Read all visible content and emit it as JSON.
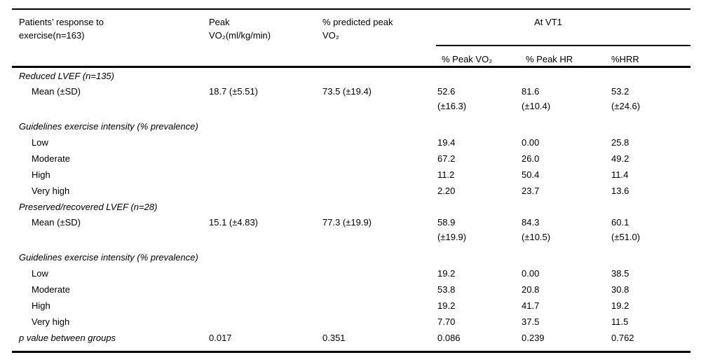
{
  "table": {
    "header": {
      "col1": "Patients’ response to\nexercise(n=163)",
      "col2": "Peak\nVO₂(ml/kg/min)",
      "col3": "% predicted peak\nVO₂",
      "at_vt1": "At VT1",
      "sub_peak_vo2": "% Peak VO₂",
      "sub_peak_hr": "% Peak HR",
      "sub_hrr": "%HRR"
    },
    "rows": [
      {
        "label": "Reduced LVEF (n=135)",
        "style": "section",
        "cells": [
          "",
          "",
          "",
          "",
          ""
        ]
      },
      {
        "label": "Mean (±SD)",
        "style": "item",
        "tall": true,
        "cells": [
          "18.7 (±5.51)",
          "73.5 (±19.4)",
          "52.6\n(±16.3)",
          "81.6\n(±10.4)",
          "53.2\n(±24.6)"
        ]
      },
      {
        "label": "Guidelines exercise intensity (% prevalence)",
        "style": "section",
        "gap": true,
        "cells": [
          "",
          "",
          "",
          "",
          ""
        ]
      },
      {
        "label": "Low",
        "style": "item",
        "cells": [
          "",
          "",
          "19.4",
          "0.00",
          "25.8"
        ]
      },
      {
        "label": "Moderate",
        "style": "item",
        "cells": [
          "",
          "",
          "67.2",
          "26.0",
          "49.2"
        ]
      },
      {
        "label": "High",
        "style": "item",
        "cells": [
          "",
          "",
          "11.2",
          "50.4",
          "11.4"
        ]
      },
      {
        "label": "Very high",
        "style": "item",
        "cells": [
          "",
          "",
          "2.20",
          "23.7",
          "13.6"
        ]
      },
      {
        "label": "Preserved/recovered LVEF (n=28)",
        "style": "section",
        "cells": [
          "",
          "",
          "",
          "",
          ""
        ]
      },
      {
        "label": "Mean (±SD)",
        "style": "item",
        "tall": true,
        "cells": [
          "15.1 (±4.83)",
          "77.3 (±19.9)",
          "58.9\n(±19.9)",
          "84.3\n(±10.5)",
          "60.1\n(±51.0)"
        ]
      },
      {
        "label": "Guidelines exercise intensity (% prevalence)",
        "style": "section",
        "gap": true,
        "cells": [
          "",
          "",
          "",
          "",
          ""
        ]
      },
      {
        "label": "Low",
        "style": "item",
        "cells": [
          "",
          "",
          "19.2",
          "0.00",
          "38.5"
        ]
      },
      {
        "label": "Moderate",
        "style": "item",
        "cells": [
          "",
          "",
          "53.8",
          "20.8",
          "30.8"
        ]
      },
      {
        "label": "High",
        "style": "item",
        "cells": [
          "",
          "",
          "19.2",
          "41.7",
          "19.2"
        ]
      },
      {
        "label": "Very high",
        "style": "item",
        "cells": [
          "",
          "",
          "7.70",
          "37.5",
          "11.5"
        ]
      },
      {
        "label": "p value between groups",
        "style": "pvalue",
        "cells": [
          "0.017",
          "0.351",
          "0.086",
          "0.239",
          "0.762"
        ]
      }
    ]
  },
  "colors": {
    "background": "#ffffff",
    "text": "#000000",
    "rule": "#000000"
  }
}
